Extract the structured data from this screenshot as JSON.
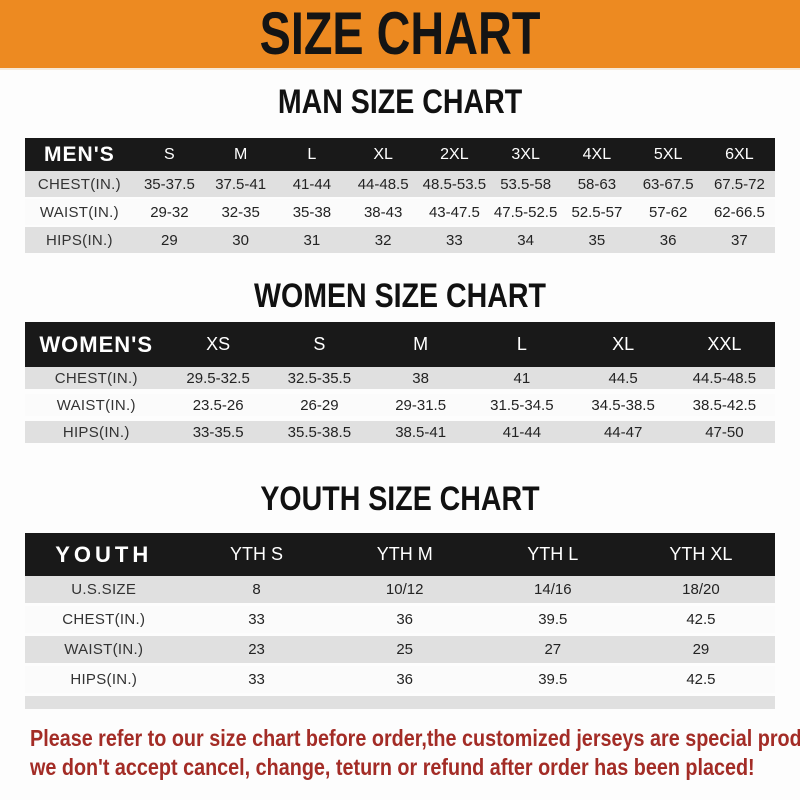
{
  "banner": {
    "title": "SIZE CHART"
  },
  "sections": [
    {
      "id": "men",
      "title": "MAN SIZE CHART",
      "header_label": "MEN'S",
      "columns": [
        "S",
        "M",
        "L",
        "XL",
        "2XL",
        "3XL",
        "4XL",
        "5XL",
        "6XL"
      ],
      "rows": [
        {
          "label": "CHEST(IN.)",
          "values": [
            "35-37.5",
            "37.5-41",
            "41-44",
            "44-48.5",
            "48.5-53.5",
            "53.5-58",
            "58-63",
            "63-67.5",
            "67.5-72"
          ]
        },
        {
          "label": "WAIST(IN.)",
          "values": [
            "29-32",
            "32-35",
            "35-38",
            "38-43",
            "43-47.5",
            "47.5-52.5",
            "52.5-57",
            "57-62",
            "62-66.5"
          ]
        },
        {
          "label": "HIPS(IN.)",
          "values": [
            "29",
            "30",
            "31",
            "32",
            "33",
            "34",
            "35",
            "36",
            "37"
          ]
        }
      ]
    },
    {
      "id": "women",
      "title": "WOMEN SIZE CHART",
      "header_label": "WOMEN'S",
      "columns": [
        "XS",
        "S",
        "M",
        "L",
        "XL",
        "XXL"
      ],
      "rows": [
        {
          "label": "CHEST(IN.)",
          "values": [
            "29.5-32.5",
            "32.5-35.5",
            "38",
            "41",
            "44.5",
            "44.5-48.5"
          ]
        },
        {
          "label": "WAIST(IN.)",
          "values": [
            "23.5-26",
            "26-29",
            "29-31.5",
            "31.5-34.5",
            "34.5-38.5",
            "38.5-42.5"
          ]
        },
        {
          "label": "HIPS(IN.)",
          "values": [
            "33-35.5",
            "35.5-38.5",
            "38.5-41",
            "41-44",
            "44-47",
            "47-50"
          ]
        }
      ]
    },
    {
      "id": "youth",
      "title": "YOUTH SIZE CHART",
      "header_label": "YOUTH",
      "columns": [
        "YTH S",
        "YTH M",
        "YTH L",
        "YTH XL"
      ],
      "rows": [
        {
          "label": "U.S.SIZE",
          "values": [
            "8",
            "10/12",
            "14/16",
            "18/20"
          ]
        },
        {
          "label": "CHEST(IN.)",
          "values": [
            "33",
            "36",
            "39.5",
            "42.5"
          ]
        },
        {
          "label": "WAIST(IN.)",
          "values": [
            "23",
            "25",
            "27",
            "29"
          ]
        },
        {
          "label": "HIPS(IN.)",
          "values": [
            "33",
            "36",
            "39.5",
            "42.5"
          ]
        }
      ]
    }
  ],
  "footer": {
    "line1": "Please refer to our size chart before order,the customized jerseys are special products,",
    "line2": "we don't accept cancel, change, teturn or refund after order has been placed!"
  },
  "colors": {
    "banner_bg": "#ed8a21",
    "bar_bg": "#191919",
    "shade_bg": "#e0e0e0",
    "footer_red": "#a32c26"
  }
}
